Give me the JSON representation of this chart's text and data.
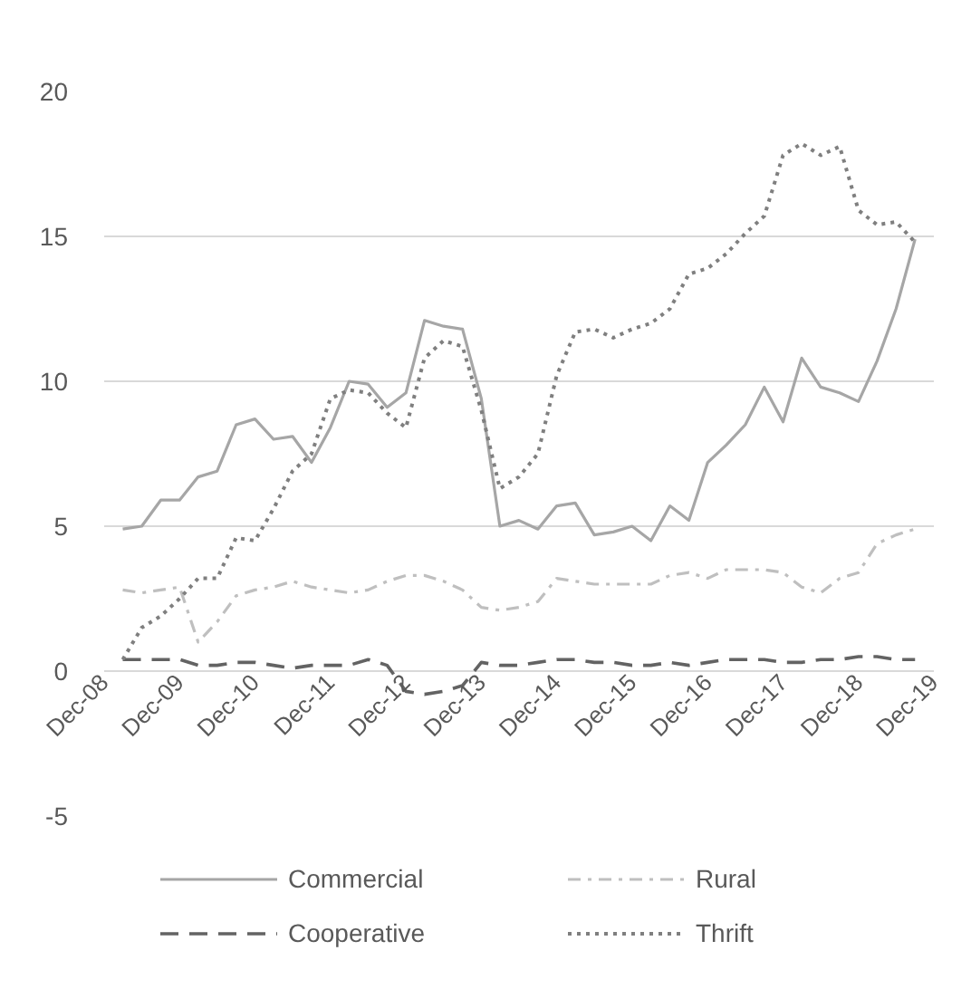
{
  "chart_data": {
    "type": "line",
    "x": [
      "2009-03",
      "2009-06",
      "2009-09",
      "2009-12",
      "2010-03",
      "2010-06",
      "2010-09",
      "2010-12",
      "2011-03",
      "2011-06",
      "2011-09",
      "2011-12",
      "2012-03",
      "2012-06",
      "2012-09",
      "2012-12",
      "2013-03",
      "2013-06",
      "2013-09",
      "2013-12",
      "2014-03",
      "2014-06",
      "2014-09",
      "2014-12",
      "2015-03",
      "2015-06",
      "2015-09",
      "2015-12",
      "2016-03",
      "2016-06",
      "2016-09",
      "2016-12",
      "2017-03",
      "2017-06",
      "2017-09",
      "2017-12",
      "2018-03",
      "2018-06",
      "2018-09",
      "2018-12",
      "2019-03",
      "2019-06",
      "2019-09"
    ],
    "series": [
      {
        "name": "Commercial",
        "color": "#a6a6a6",
        "line_style": "solid",
        "values": [
          4.9,
          5.0,
          5.9,
          5.9,
          6.7,
          6.9,
          8.5,
          8.7,
          8.0,
          8.1,
          7.2,
          8.4,
          10.0,
          9.9,
          9.1,
          9.6,
          12.1,
          11.9,
          11.8,
          9.4,
          5.0,
          5.2,
          4.9,
          5.7,
          5.8,
          4.7,
          4.8,
          5.0,
          4.5,
          5.7,
          5.2,
          7.2,
          7.8,
          8.5,
          9.8,
          8.6,
          10.8,
          9.8,
          9.6,
          9.3,
          10.7,
          12.5,
          14.9
        ]
      },
      {
        "name": "Rural",
        "color": "#bfbfbf",
        "line_style": "dashdot",
        "values": [
          2.8,
          2.7,
          2.8,
          2.9,
          1.0,
          1.7,
          2.6,
          2.8,
          2.9,
          3.1,
          2.9,
          2.8,
          2.7,
          2.8,
          3.1,
          3.3,
          3.3,
          3.1,
          2.8,
          2.2,
          2.1,
          2.2,
          2.4,
          3.2,
          3.1,
          3.0,
          3.0,
          3.0,
          3.0,
          3.3,
          3.4,
          3.2,
          3.5,
          3.5,
          3.5,
          3.4,
          2.9,
          2.7,
          3.2,
          3.4,
          4.4,
          4.7,
          4.9
        ]
      },
      {
        "name": "Cooperative",
        "color": "#636363",
        "line_style": "dashed",
        "values": [
          0.4,
          0.4,
          0.4,
          0.4,
          0.2,
          0.2,
          0.3,
          0.3,
          0.2,
          0.1,
          0.2,
          0.2,
          0.2,
          0.4,
          0.2,
          -0.7,
          -0.8,
          -0.7,
          -0.5,
          0.3,
          0.2,
          0.2,
          0.3,
          0.4,
          0.4,
          0.3,
          0.3,
          0.2,
          0.2,
          0.3,
          0.2,
          0.3,
          0.4,
          0.4,
          0.4,
          0.3,
          0.3,
          0.4,
          0.4,
          0.5,
          0.5,
          0.4,
          0.4
        ]
      },
      {
        "name": "Thrift",
        "color": "#7f7f7f",
        "line_style": "dotted",
        "values": [
          0.4,
          1.5,
          1.9,
          2.5,
          3.2,
          3.2,
          4.6,
          4.5,
          5.6,
          6.9,
          7.5,
          9.4,
          9.7,
          9.6,
          8.9,
          8.4,
          10.8,
          11.4,
          11.2,
          9.0,
          6.3,
          6.7,
          7.5,
          10.2,
          11.7,
          11.8,
          11.5,
          11.8,
          12.0,
          12.5,
          13.7,
          13.9,
          14.4,
          15.1,
          15.7,
          17.8,
          18.2,
          17.8,
          18.1,
          15.9,
          15.4,
          15.5,
          14.8
        ]
      }
    ],
    "xlim": [
      "2008-12",
      "2019-12"
    ],
    "xticks": [
      {
        "value": "2008-12",
        "label": "Dec-08"
      },
      {
        "value": "2009-12",
        "label": "Dec-09"
      },
      {
        "value": "2010-12",
        "label": "Dec-10"
      },
      {
        "value": "2011-12",
        "label": "Dec-11"
      },
      {
        "value": "2012-12",
        "label": "Dec-12"
      },
      {
        "value": "2013-12",
        "label": "Dec-13"
      },
      {
        "value": "2014-12",
        "label": "Dec-14"
      },
      {
        "value": "2015-12",
        "label": "Dec-15"
      },
      {
        "value": "2016-12",
        "label": "Dec-16"
      },
      {
        "value": "2017-12",
        "label": "Dec-17"
      },
      {
        "value": "2018-12",
        "label": "Dec-18"
      },
      {
        "value": "2019-12",
        "label": "Dec-19"
      }
    ],
    "ylim": [
      -5,
      20
    ],
    "yticks": [
      -5,
      0,
      5,
      10,
      15,
      20
    ],
    "grid": "y",
    "legend": "bottom"
  }
}
